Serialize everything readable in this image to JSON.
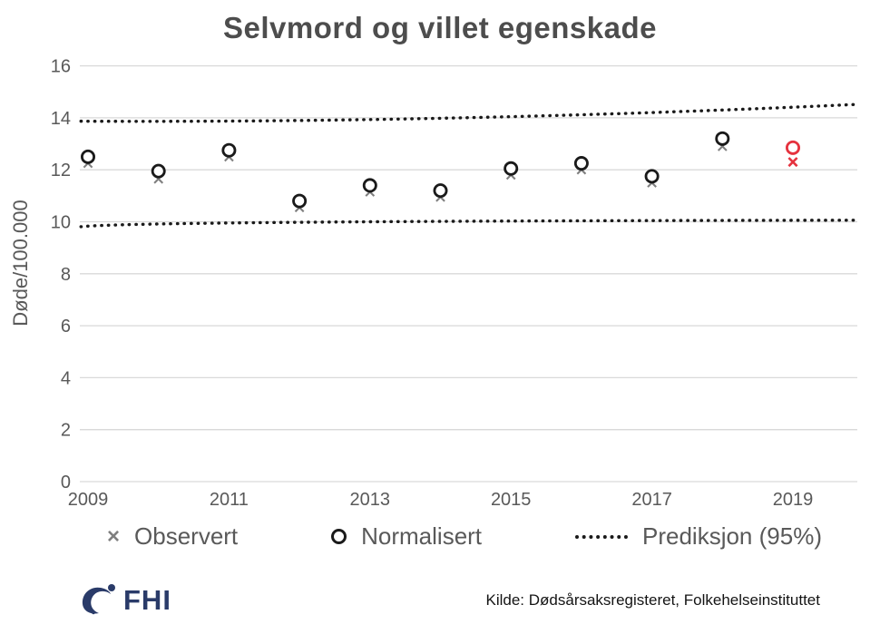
{
  "title": "Selvmord og villet egenskade",
  "chart_data": {
    "type": "scatter",
    "title": "Selvmord og villet egenskade",
    "ylabel": "Døde/100.000",
    "xlabel": "",
    "ylim": [
      0,
      16
    ],
    "yticks": [
      0,
      2,
      4,
      6,
      8,
      10,
      12,
      14,
      16
    ],
    "xticks": [
      2009,
      2011,
      2013,
      2015,
      2017,
      2019
    ],
    "grid": true,
    "legend_position": "bottom",
    "x": [
      2009,
      2010,
      2011,
      2012,
      2013,
      2014,
      2015,
      2016,
      2017,
      2018,
      2019
    ],
    "series": [
      {
        "name": "Observert",
        "marker": "x",
        "color": "#7f7f7f",
        "values": [
          12.25,
          11.65,
          12.5,
          10.55,
          11.15,
          10.95,
          11.8,
          12.0,
          11.5,
          12.9,
          12.3
        ]
      },
      {
        "name": "Normalisert",
        "marker": "circle",
        "color": "#1a1a1a",
        "values": [
          12.5,
          11.95,
          12.75,
          10.8,
          11.4,
          11.2,
          12.05,
          12.25,
          11.75,
          13.2,
          12.85
        ]
      }
    ],
    "highlight_year": 2019,
    "highlight_color": "#e5323e",
    "prediction": {
      "name": "Prediksjon (95%)",
      "upper": [
        [
          2008.9,
          13.87
        ],
        [
          2014.3,
          14.0
        ],
        [
          2019.93,
          14.52
        ]
      ],
      "lower": [
        [
          2008.9,
          9.81
        ],
        [
          2012.0,
          9.98
        ],
        [
          2019.93,
          10.06
        ]
      ]
    }
  },
  "legend": {
    "items": [
      {
        "label": "Observert",
        "marker": "x-marker-icon"
      },
      {
        "label": "Normalisert",
        "marker": "circle-marker-icon"
      },
      {
        "label": "Prediksjon (95%)",
        "marker": "dotted-line-icon"
      }
    ],
    "x_glyph": "×"
  },
  "footer": {
    "logo_text": "FHI",
    "source": "Kilde: Dødsårsaksregisteret, Folkehelseinstituttet"
  },
  "colors": {
    "title": "#4d4d4d",
    "axis_text": "#595959",
    "gridline": "#d9d9d9",
    "marker_black": "#1a1a1a",
    "marker_gray": "#7f7f7f",
    "highlight_red": "#e5323e",
    "fhi_navy": "#2a3b69"
  }
}
